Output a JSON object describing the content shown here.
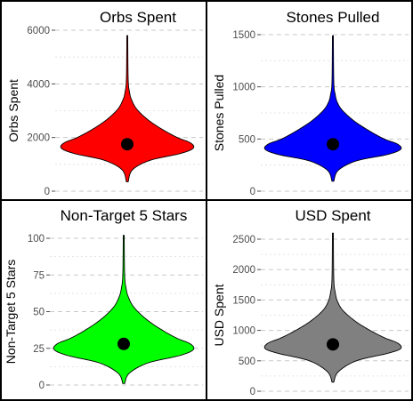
{
  "chart_data": [
    {
      "type": "violin",
      "title": "Orbs Spent",
      "ylabel": "Orbs Spent",
      "ylim": [
        0,
        6000
      ],
      "y_ticks": [
        0,
        2000,
        4000,
        6000
      ],
      "y_tick_labels": [
        "0",
        "2000",
        "4000",
        "6000"
      ],
      "fill_color": "#ff0000",
      "min": 350,
      "max": 5800,
      "mean": 1750,
      "grid": "dashed horizontal",
      "density": [
        [
          350,
          1
        ],
        [
          800,
          6
        ],
        [
          1150,
          26
        ],
        [
          1400,
          60
        ],
        [
          1600,
          75
        ],
        [
          1800,
          72
        ],
        [
          2000,
          57
        ],
        [
          2300,
          40
        ],
        [
          2650,
          24
        ],
        [
          3050,
          11
        ],
        [
          3400,
          5
        ],
        [
          3700,
          2.5
        ],
        [
          4200,
          1
        ],
        [
          5800,
          0.5
        ]
      ]
    },
    {
      "type": "violin",
      "title": "Stones Pulled",
      "ylabel": "Stones Pulled",
      "ylim": [
        0,
        1500
      ],
      "y_ticks": [
        0,
        500,
        1000,
        1500
      ],
      "y_tick_labels": [
        "0",
        "500",
        "1000",
        "1500"
      ],
      "fill_color": "#0000ff",
      "min": 95,
      "max": 1490,
      "mean": 450,
      "grid": "dashed horizontal",
      "density": [
        [
          95,
          1
        ],
        [
          200,
          6
        ],
        [
          290,
          26
        ],
        [
          350,
          60
        ],
        [
          400,
          75
        ],
        [
          450,
          72
        ],
        [
          500,
          57
        ],
        [
          580,
          40
        ],
        [
          670,
          24
        ],
        [
          770,
          11
        ],
        [
          850,
          5
        ],
        [
          930,
          2.5
        ],
        [
          1050,
          1
        ],
        [
          1490,
          0.5
        ]
      ]
    },
    {
      "type": "violin",
      "title": "Non-Target 5 Stars",
      "ylabel": "Non-Target 5 Stars",
      "ylim": [
        0,
        100
      ],
      "y_ticks": [
        0,
        25,
        50,
        75,
        100
      ],
      "y_tick_labels": [
        "0",
        "25",
        "50",
        "75",
        "100"
      ],
      "fill_color": "#00ff00",
      "min": 1,
      "max": 102,
      "mean": 28,
      "grid": "dashed horizontal",
      "density": [
        [
          1,
          1
        ],
        [
          8,
          6
        ],
        [
          15,
          26
        ],
        [
          20,
          60
        ],
        [
          24,
          75
        ],
        [
          28,
          72
        ],
        [
          32,
          57
        ],
        [
          38,
          40
        ],
        [
          45,
          24
        ],
        [
          53,
          11
        ],
        [
          60,
          5
        ],
        [
          66,
          2.5
        ],
        [
          75,
          1
        ],
        [
          102,
          0.5
        ]
      ]
    },
    {
      "type": "violin",
      "title": "USD Spent",
      "ylabel": "USD Spent",
      "ylim": [
        0,
        2500
      ],
      "y_ticks": [
        0,
        500,
        1000,
        1500,
        2000,
        2500
      ],
      "y_tick_labels": [
        "0",
        "500",
        "1000",
        "1500",
        "2000",
        "2500"
      ],
      "fill_color": "#808080",
      "min": 150,
      "max": 2600,
      "mean": 770,
      "grid": "dashed horizontal",
      "density": [
        [
          150,
          1
        ],
        [
          320,
          6
        ],
        [
          500,
          26
        ],
        [
          620,
          60
        ],
        [
          700,
          75
        ],
        [
          790,
          72
        ],
        [
          880,
          57
        ],
        [
          1010,
          40
        ],
        [
          1160,
          24
        ],
        [
          1330,
          11
        ],
        [
          1480,
          5
        ],
        [
          1630,
          2.5
        ],
        [
          1850,
          1
        ],
        [
          2600,
          0.5
        ]
      ]
    }
  ]
}
